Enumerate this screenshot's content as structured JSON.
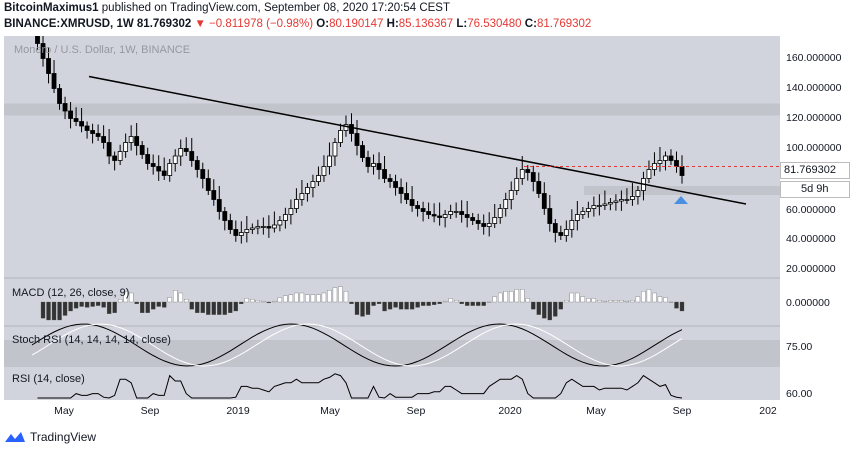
{
  "header": {
    "author": "BitcoinMaximus1",
    "published_text": "published on TradingView.com, September 08, 2020 17:20:54 CEST",
    "symbol": "BINANCE:XMRUSD, 1W",
    "last": "81.769302",
    "change": "▼ −0.811978 (−0.98%)",
    "o_label": "O:",
    "o_value": "80.190147",
    "h_label": "H:",
    "h_value": "85.136367",
    "l_label": "L:",
    "l_value": "76.530480",
    "c_label": "C:",
    "c_value": "81.769302"
  },
  "main_pane": {
    "symbol_label": "Monero / U.S. Dollar, 1W, BINANCE",
    "price_ticks": [
      "160.000000",
      "140.000000",
      "120.000000",
      "100.000000",
      "60.000000",
      "40.000000",
      "20.000000"
    ],
    "current_price": "81.769302",
    "countdown": "5d 9h"
  },
  "panes": {
    "macd_label": "MACD (12, 26, close, 9)",
    "macd_tick": "0.000000",
    "stoch_label": "Stoch RSI (14, 14, 14, 14, close)",
    "stoch_tick": "75.00",
    "rsi_label": "RSI (14, close)",
    "rsi_tick": "60.00"
  },
  "time_axis": [
    "May",
    "Sep",
    "2019",
    "May",
    "Sep",
    "2020",
    "May",
    "Sep",
    "202"
  ],
  "footer": {
    "brand": "TradingView"
  },
  "colors": {
    "background": "#d1d4dc",
    "zone": "#c2c4cc",
    "trendline": "#000000",
    "resistance": "#e53935",
    "arrow": "#4a90e2"
  },
  "chart_data": {
    "type": "candlestick",
    "y_range": [
      15,
      175
    ],
    "price_ticks_values": [
      160,
      140,
      120,
      100,
      80,
      60,
      40,
      20
    ],
    "resistance_level": 88,
    "support_zone": [
      122,
      130
    ],
    "support_zone_2": [
      69,
      75
    ],
    "trendline": {
      "from": {
        "date": "2018-05",
        "price": 148
      },
      "to": {
        "date": "2020-12",
        "price": 63
      }
    },
    "closes_weekly": [
      178,
      170,
      160,
      150,
      140,
      130,
      125,
      120,
      118,
      115,
      112,
      110,
      108,
      104,
      95,
      92,
      98,
      104,
      108,
      102,
      96,
      90,
      88,
      85,
      82,
      90,
      95,
      100,
      98,
      92,
      86,
      80,
      72,
      66,
      58,
      52,
      46,
      42,
      44,
      46,
      47,
      48,
      48,
      47,
      49,
      52,
      56,
      60,
      66,
      70,
      74,
      78,
      82,
      88,
      95,
      104,
      112,
      116,
      110,
      102,
      94,
      88,
      90,
      86,
      80,
      78,
      74,
      70,
      66,
      62,
      60,
      58,
      56,
      55,
      54,
      56,
      58,
      58,
      56,
      54,
      52,
      50,
      48,
      50,
      54,
      60,
      66,
      72,
      80,
      86,
      84,
      78,
      70,
      60,
      50,
      44,
      42,
      46,
      52,
      56,
      58,
      60,
      62,
      62,
      63,
      64,
      65,
      66,
      66,
      68,
      72,
      80,
      86,
      90,
      92,
      95,
      92,
      88,
      82
    ]
  }
}
